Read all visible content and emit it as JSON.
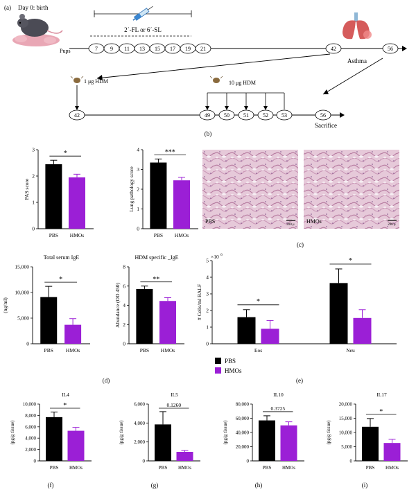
{
  "colors": {
    "pbs": "#000000",
    "hmo": "#9b1fd6",
    "axis": "#000000",
    "micro_bg": "#e3c4d6"
  },
  "panel_labels": {
    "a": "(a)",
    "b": "(b)",
    "c": "(c)",
    "d": "(d)",
    "e": "(e)",
    "f": "(f)",
    "g": "(g)",
    "h": "(h)",
    "i": "(i)"
  },
  "timeline": {
    "day0": "Day 0: birth",
    "pups": "Pups",
    "treatment": "2´-FL or 6´-SL",
    "days": [
      "7",
      "9",
      "11",
      "13",
      "15",
      "17",
      "19",
      "21"
    ],
    "day42": "42",
    "day56": "56",
    "asthma": "Asthma",
    "hdm1": "1 μg HDM",
    "hdm10": "10 μg HDM",
    "lower_days": [
      "42",
      "49",
      "50",
      "51",
      "52",
      "53",
      "56"
    ],
    "sacrifice": "Sacrifice"
  },
  "micrographs": {
    "left_label": "PBS",
    "right_label": "HMOs",
    "scale": "200 μ"
  },
  "legend": {
    "pbs": "PBS",
    "hmo": "HMOs"
  },
  "chart_data": [
    {
      "type": "bar",
      "panel": "b1",
      "title": "",
      "xlabel": "",
      "ylabel": "PAS score",
      "categories": [
        "PBS",
        "HMOs"
      ],
      "values": [
        2.45,
        1.95
      ],
      "errors": [
        0.15,
        0.12
      ],
      "ylim": [
        0,
        3
      ],
      "yticks": [
        "0",
        "1",
        "2",
        "3"
      ],
      "significance": "*"
    },
    {
      "type": "bar",
      "panel": "b2",
      "title": "",
      "xlabel": "",
      "ylabel": "Lung pathology score",
      "categories": [
        "PBS",
        "HMOs"
      ],
      "values": [
        3.35,
        2.45
      ],
      "errors": [
        0.18,
        0.15
      ],
      "ylim": [
        0,
        4
      ],
      "yticks": [
        "0",
        "1",
        "2",
        "3",
        "4"
      ],
      "significance": "***"
    },
    {
      "type": "bar",
      "panel": "d1",
      "title": "Total serum IgE",
      "xlabel": "",
      "ylabel": "(ng/ml)",
      "categories": [
        "PBS",
        "HMOs"
      ],
      "values": [
        9100,
        3700
      ],
      "errors": [
        2100,
        1200
      ],
      "ylim": [
        0,
        15000
      ],
      "yticks": [
        "0",
        "5,000",
        "10,000",
        "15,000"
      ],
      "significance": "*"
    },
    {
      "type": "bar",
      "panel": "d2",
      "title": "HDM specific _IgE",
      "xlabel": "",
      "ylabel": "Abundance (OD 450)",
      "categories": [
        "PBS",
        "HMOs"
      ],
      "values": [
        5.7,
        4.45
      ],
      "errors": [
        0.3,
        0.35
      ],
      "ylim": [
        0,
        8
      ],
      "yticks": [
        "0",
        "2",
        "4",
        "6",
        "8"
      ],
      "significance": "**"
    },
    {
      "type": "bar",
      "panel": "e",
      "title": "",
      "xlabel": "",
      "ylabel": "# Cells/ml BALF",
      "exponent": "×10",
      "exponent_power": "6",
      "categories": [
        "Eos",
        "Neu"
      ],
      "series": [
        {
          "name": "PBS",
          "values": [
            1.6,
            3.65
          ],
          "errors": [
            0.45,
            0.85
          ]
        },
        {
          "name": "HMOs",
          "values": [
            0.9,
            1.55
          ],
          "errors": [
            0.5,
            0.5
          ]
        }
      ],
      "ylim": [
        0,
        5
      ],
      "yticks": [
        "0",
        "1",
        "2",
        "3",
        "4",
        "5"
      ],
      "significance": [
        "*",
        "*"
      ]
    },
    {
      "type": "bar",
      "panel": "f",
      "title": "IL4",
      "xlabel": "",
      "ylabel": "(pg/g tissue)",
      "categories": [
        "PBS",
        "HMOs"
      ],
      "values": [
        7700,
        5300
      ],
      "errors": [
        900,
        600
      ],
      "ylim": [
        0,
        10000
      ],
      "yticks": [
        "0",
        "2,000",
        "4,000",
        "6,000",
        "8,000",
        "10,000"
      ],
      "significance": "*"
    },
    {
      "type": "bar",
      "panel": "g",
      "title": "IL5",
      "xlabel": "",
      "ylabel": "(pg/g tissue)",
      "categories": [
        "PBS",
        "HMOs"
      ],
      "values": [
        3850,
        950
      ],
      "errors": [
        1350,
        150
      ],
      "ylim": [
        0,
        6000
      ],
      "yticks": [
        "0",
        "2,000",
        "4,000",
        "6,000"
      ],
      "significance": "0.1260"
    },
    {
      "type": "bar",
      "panel": "h",
      "title": "IL10",
      "xlabel": "",
      "ylabel": "(pg/g tissue)",
      "categories": [
        "PBS",
        "HMOs"
      ],
      "values": [
        57000,
        50000
      ],
      "errors": [
        6500,
        5000
      ],
      "ylim": [
        0,
        80000
      ],
      "yticks": [
        "0",
        "20,000",
        "40,000",
        "60,000",
        "80,000"
      ],
      "significance": "0.3725"
    },
    {
      "type": "bar",
      "panel": "i",
      "title": "IL17",
      "xlabel": "",
      "ylabel": "(pg/g tissue)",
      "categories": [
        "PBS",
        "HMOs"
      ],
      "values": [
        12000,
        6300
      ],
      "errors": [
        2900,
        1300
      ],
      "ylim": [
        0,
        20000
      ],
      "yticks": [
        "0",
        "5,000",
        "10,000",
        "15,000",
        "20,000"
      ],
      "significance": "*"
    }
  ]
}
